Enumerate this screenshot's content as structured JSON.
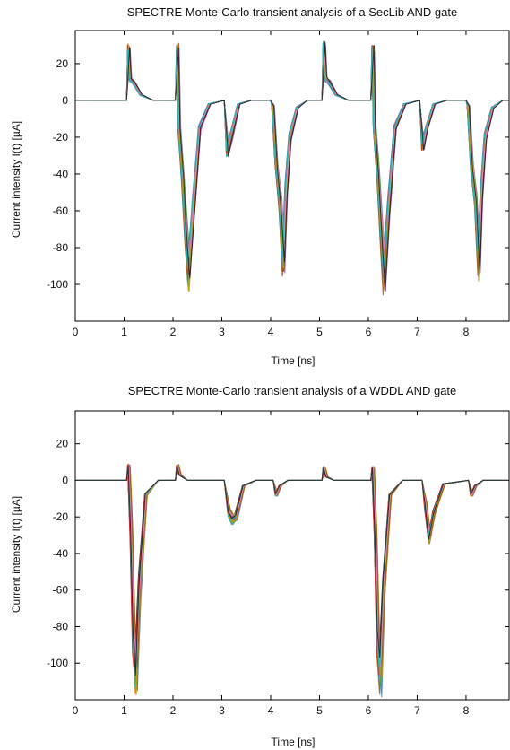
{
  "chart_data": [
    {
      "type": "line",
      "title": "SPECTRE Monte-Carlo transient analysis of a SecLib AND gate",
      "xlabel": "Time [ns]",
      "ylabel": "Current intensity I(t) [µA]",
      "xlim": [
        0,
        8.9
      ],
      "ylim": [
        -120,
        38
      ],
      "xticks": [
        "0",
        "1",
        "2",
        "3",
        "4",
        "5",
        "6",
        "7",
        "8"
      ],
      "yticks": [
        "20",
        "0",
        "-20",
        "-40",
        "-60",
        "-80",
        "-100"
      ],
      "grid": false,
      "legend": "none",
      "series_colors": [
        "#e41a1c",
        "#377eb8",
        "#4daf4a",
        "#984ea3",
        "#ff7f00",
        "#a6a600",
        "#a65628",
        "#f781bf",
        "#17becf",
        "#222222"
      ],
      "series": [
        {
          "x": [
            0,
            1.05,
            1.1,
            1.13,
            1.2,
            1.35,
            1.6,
            2.05,
            2.1,
            2.13,
            2.2,
            2.27,
            2.33,
            2.42,
            2.55,
            2.75,
            3.05,
            3.12,
            3.2,
            3.35,
            3.6,
            4.0,
            4.05,
            4.12,
            4.2,
            4.27,
            4.32,
            4.4,
            4.55,
            4.75,
            5.05,
            5.1,
            5.13,
            5.2,
            5.35,
            5.6,
            6.05,
            6.1,
            6.13,
            6.2,
            6.27,
            6.33,
            6.42,
            6.55,
            6.75,
            7.05,
            7.12,
            7.2,
            7.35,
            7.6,
            8.0,
            8.05,
            8.12,
            8.2,
            8.27,
            8.32,
            8.4,
            8.55,
            8.75,
            8.9
          ],
          "values": [
            0,
            0,
            28,
            12,
            10,
            3,
            0,
            0,
            28,
            -15,
            -40,
            -70,
            -95,
            -60,
            -15,
            -2,
            0,
            -28,
            -20,
            -2,
            0,
            0,
            -3,
            -35,
            -55,
            -88,
            -50,
            -20,
            -4,
            0,
            0,
            30,
            12,
            10,
            3,
            0,
            0,
            28,
            -15,
            -40,
            -70,
            -95,
            -60,
            -15,
            -2,
            0,
            -25,
            -15,
            -2,
            0,
            0,
            -3,
            -35,
            -55,
            -88,
            -50,
            -20,
            -4,
            0,
            0
          ]
        }
      ]
    },
    {
      "type": "line",
      "title": "SPECTRE Monte-Carlo transient analysis of a WDDL AND gate",
      "xlabel": "Time [ns]",
      "ylabel": "Current intensity I(t) [µA]",
      "xlim": [
        0,
        8.9
      ],
      "ylim": [
        -120,
        38
      ],
      "xticks": [
        "0",
        "1",
        "2",
        "3",
        "4",
        "5",
        "6",
        "7",
        "8"
      ],
      "yticks": [
        "20",
        "0",
        "-20",
        "-40",
        "-60",
        "-80",
        "-100"
      ],
      "grid": false,
      "legend": "none",
      "series_colors": [
        "#e41a1c",
        "#377eb8",
        "#4daf4a",
        "#984ea3",
        "#ff7f00",
        "#a6a600",
        "#a65628",
        "#f781bf",
        "#17becf",
        "#222222"
      ],
      "series": [
        {
          "x": [
            0,
            1.05,
            1.1,
            1.15,
            1.2,
            1.25,
            1.32,
            1.45,
            1.7,
            2.05,
            2.1,
            2.15,
            2.3,
            3.05,
            3.15,
            3.22,
            3.3,
            3.45,
            3.7,
            4.05,
            4.12,
            4.2,
            4.35,
            5.05,
            5.1,
            5.15,
            5.3,
            6.05,
            6.1,
            6.15,
            6.2,
            6.25,
            6.32,
            6.45,
            6.7,
            7.1,
            7.18,
            7.25,
            7.35,
            7.55,
            8.05,
            8.12,
            8.2,
            8.35,
            8.9
          ],
          "values": [
            0,
            0,
            8,
            -30,
            -90,
            -108,
            -60,
            -8,
            0,
            0,
            8,
            3,
            0,
            0,
            -18,
            -22,
            -20,
            -3,
            0,
            0,
            -8,
            -3,
            0,
            0,
            7,
            2,
            0,
            0,
            7,
            -30,
            -90,
            -108,
            -60,
            -8,
            0,
            0,
            -15,
            -32,
            -18,
            -2,
            0,
            -8,
            -3,
            0,
            0
          ]
        }
      ]
    }
  ]
}
